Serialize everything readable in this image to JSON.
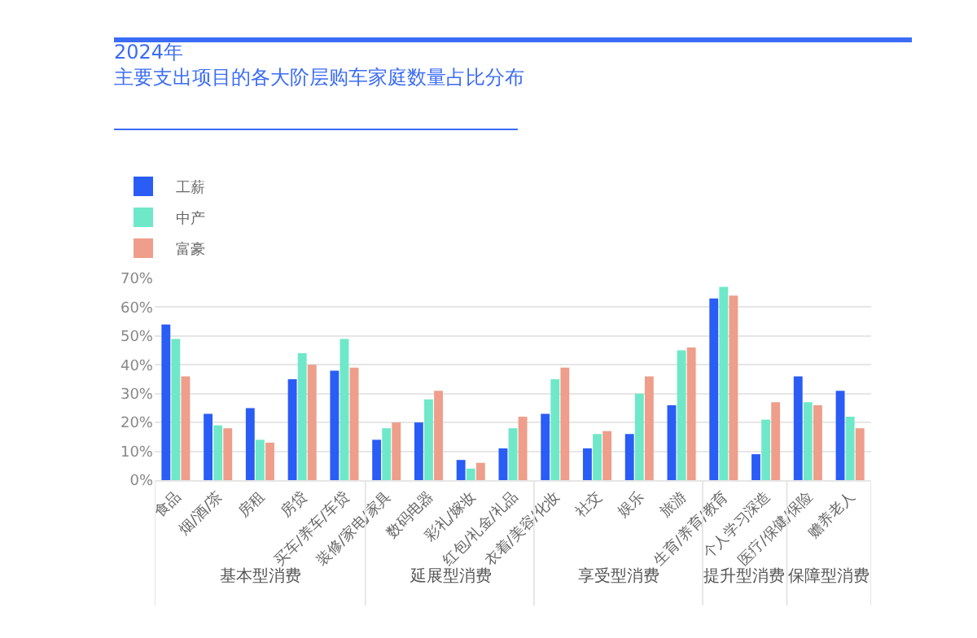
{
  "chart_data": {
    "type": "bar",
    "title": "2024年",
    "subtitle": "主要支出项目的各大阶层购车家庭数量占比分布",
    "categories": [
      "食品",
      "烟/酒/茶",
      "房租",
      "房贷",
      "买车/养车/车贷",
      "装修/家电/家具",
      "数码电器",
      "彩礼/嫁妆",
      "红包/礼金/礼品",
      "衣着/美容/化妆",
      "社交",
      "娱乐",
      "旅游",
      "生育/养育/教育",
      "个人学习深造",
      "医疗/保健/保险",
      "赡养老人"
    ],
    "series": [
      {
        "name": "工薪",
        "color": "#2a5cf6",
        "values": [
          54,
          23,
          25,
          35,
          38,
          14,
          20,
          7,
          11,
          23,
          11,
          16,
          26,
          63,
          9,
          36,
          31
        ]
      },
      {
        "name": "中产",
        "color": "#6ee8c8",
        "values": [
          49,
          19,
          14,
          44,
          49,
          18,
          28,
          4,
          18,
          35,
          16,
          30,
          45,
          67,
          21,
          27,
          22
        ]
      },
      {
        "name": "富豪",
        "color": "#ee9e8a",
        "values": [
          36,
          18,
          13,
          40,
          39,
          20,
          31,
          6,
          22,
          39,
          17,
          36,
          46,
          64,
          27,
          26,
          18
        ]
      }
    ],
    "ylim": [
      0,
      70
    ],
    "yticks": [
      {
        "value": 0,
        "label": "0%"
      },
      {
        "value": 10,
        "label": "10%"
      },
      {
        "value": 20,
        "label": "20%"
      },
      {
        "value": 30,
        "label": "30%"
      },
      {
        "value": 40,
        "label": "40%"
      },
      {
        "value": 50,
        "label": "50%"
      },
      {
        "value": 60,
        "label": "60%"
      },
      {
        "value": 70,
        "label": "70%"
      }
    ],
    "grid": "y",
    "legend": "top left",
    "annotations": [
      "基本型消费",
      "延展型消费",
      "享受型消费",
      "提升型消费",
      "保障型消费"
    ]
  }
}
